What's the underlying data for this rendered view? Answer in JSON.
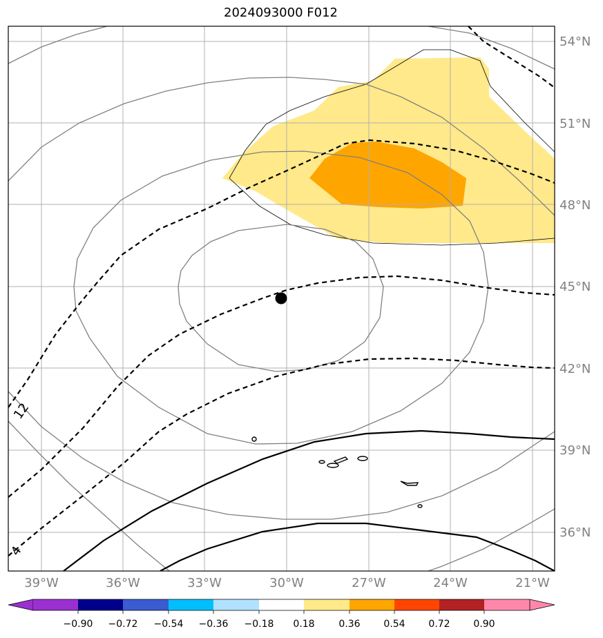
{
  "title": "2024093000 F012",
  "map": {
    "lon_labels": [
      "39°W",
      "36°W",
      "33°W",
      "30°W",
      "27°W",
      "24°W",
      "21°W"
    ],
    "lat_labels": [
      "54°N",
      "51°N",
      "48°N",
      "45°N",
      "42°N",
      "39°N",
      "36°N"
    ],
    "contour_labels": [
      "12",
      "4"
    ],
    "shading": {
      "light_yellow": "#ffe98a",
      "orange": "#ffa500"
    },
    "grid_color": "#b0b0b0",
    "label_color": "#808080"
  },
  "colorbar": {
    "ticks": [
      "−0.90",
      "−0.72",
      "−0.54",
      "−0.36",
      "−0.18",
      "0.18",
      "0.36",
      "0.54",
      "0.72",
      "0.90"
    ],
    "colors": [
      "#9a30d0",
      "#00008b",
      "#3b5bd0",
      "#00bfff",
      "#b0e2ff",
      "#ffffff",
      "#ffe98a",
      "#ffa500",
      "#ff4500",
      "#b22222",
      "#ff88aa"
    ],
    "extend_low_color": "#9a30d0",
    "extend_high_color": "#ff88aa"
  }
}
